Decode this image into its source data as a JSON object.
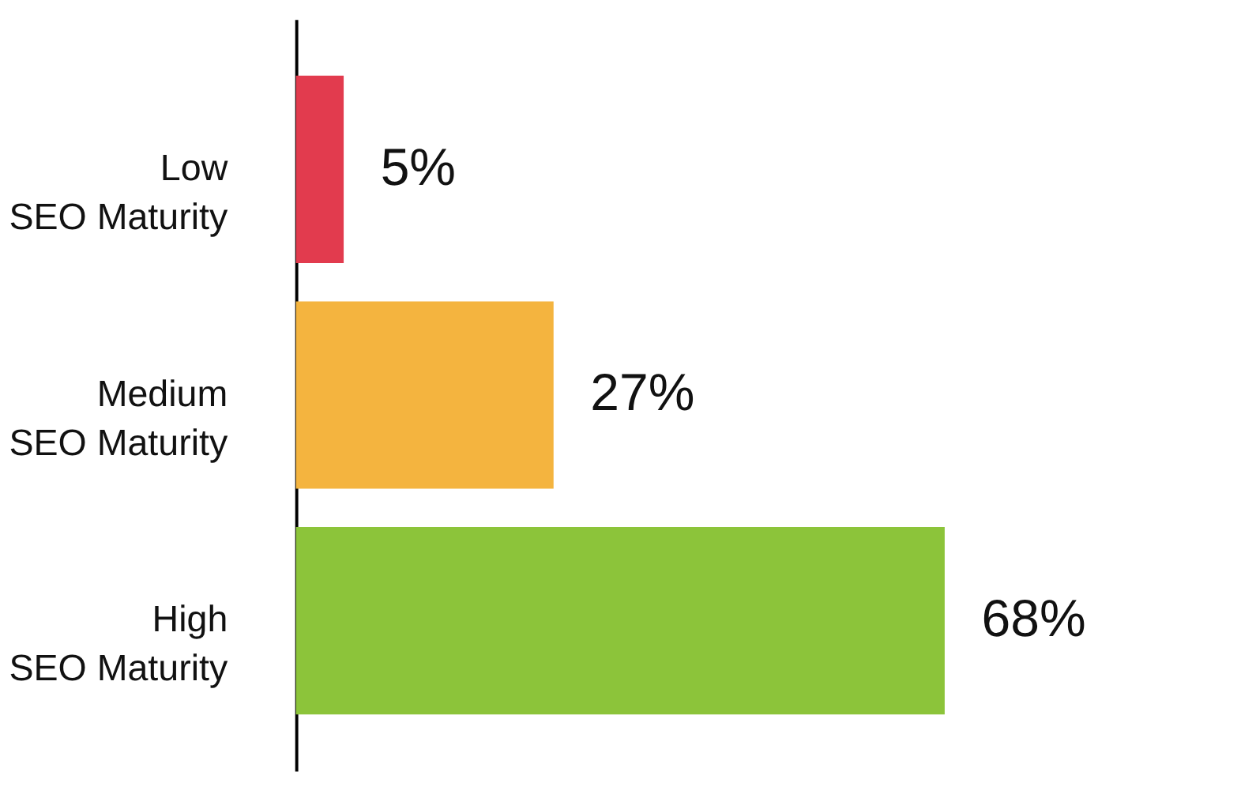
{
  "chart_data": {
    "type": "bar",
    "orientation": "horizontal",
    "categories": [
      "Low\nSEO Maturity",
      "Medium\nSEO Maturity",
      "High\nSEO Maturity"
    ],
    "values": [
      5,
      27,
      68
    ],
    "colors": [
      "#e23b4e",
      "#f4b43f",
      "#8cc43a"
    ],
    "value_labels": [
      "5%",
      "27%",
      "68%"
    ]
  }
}
